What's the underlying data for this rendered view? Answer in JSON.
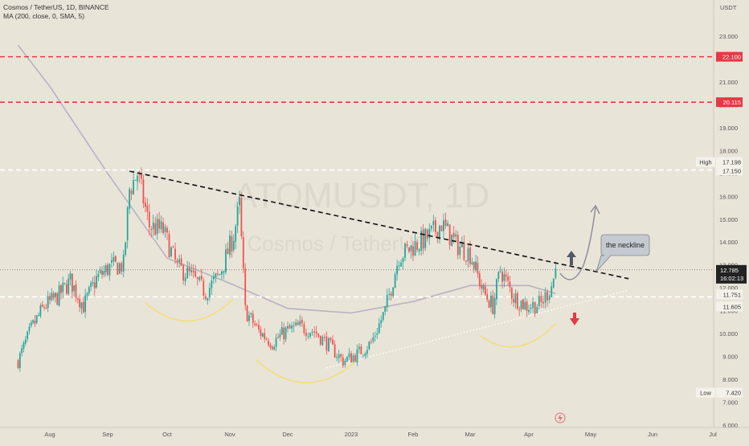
{
  "header": {
    "symbol_line": "Cosmos / TetherUS, 1D, BINANCE",
    "indicator_line": "MA (200, close, 0, SMA, 5)"
  },
  "watermark": {
    "ticker": "ATOMUSDT, 1D",
    "name": "Cosmos / TetherUS"
  },
  "price_axis": {
    "currency": "USDT",
    "ticks": [
      "6.000",
      "7.000",
      "8.000",
      "9.000",
      "10.000",
      "11.000",
      "12.000",
      "13.000",
      "14.000",
      "15.000",
      "16.000",
      "17.000",
      "18.000",
      "19.000",
      "20.000",
      "21.000",
      "22.000",
      "23.000"
    ]
  },
  "price_labels": {
    "resistance_1": "22.100",
    "resistance_2": "20.115",
    "high_tag": "High",
    "high_value": "17.198",
    "level_17150": "17.150",
    "current_price": "12.785",
    "countdown": "16:02:13",
    "level_11751": "11.751",
    "level_11605": "11.605",
    "low_tag": "Low",
    "low_value": "7.420"
  },
  "annotation": {
    "neckline_text": "the neckline"
  },
  "time_axis": {
    "labels": [
      "Aug",
      "Sep",
      "Oct",
      "Nov",
      "Dec",
      "2023",
      "Feb",
      "Mar",
      "Apr",
      "May",
      "Jun",
      "Jul"
    ]
  },
  "colors": {
    "background": "#e9e4d8",
    "up_candle": "#26a69a",
    "down_candle": "#ef5350",
    "resistance": "#e53945",
    "ma_line": "#b8b2c2",
    "neckline": "#111111",
    "cup_arcs": "#f2df7a",
    "current_price_bg": "#222222"
  },
  "chart_data": {
    "type": "candlestick",
    "title": "Cosmos / TetherUS, 1D, BINANCE",
    "ylim": [
      6.0,
      24.5
    ],
    "y_unit": "USDT",
    "x_axis": [
      "Aug",
      "Sep",
      "Oct",
      "Nov",
      "Dec",
      "2023",
      "Feb",
      "Mar",
      "Apr",
      "May",
      "Jun",
      "Jul"
    ],
    "close_path": [
      [
        "2022-07-15",
        8.8
      ],
      [
        "2022-07-22",
        10.2
      ],
      [
        "2022-07-29",
        11.2
      ],
      [
        "2022-08-05",
        11.6
      ],
      [
        "2022-08-12",
        12.3
      ],
      [
        "2022-08-19",
        11.2
      ],
      [
        "2022-08-26",
        12.4
      ],
      [
        "2022-09-02",
        12.9
      ],
      [
        "2022-09-09",
        13.0
      ],
      [
        "2022-09-12",
        16.3
      ],
      [
        "2022-09-16",
        17.0
      ],
      [
        "2022-09-22",
        14.7
      ],
      [
        "2022-09-29",
        14.5
      ],
      [
        "2022-10-06",
        12.9
      ],
      [
        "2022-10-13",
        12.5
      ],
      [
        "2022-10-20",
        11.8
      ],
      [
        "2022-10-27",
        12.6
      ],
      [
        "2022-11-03",
        14.3
      ],
      [
        "2022-11-06",
        15.6
      ],
      [
        "2022-11-09",
        11.0
      ],
      [
        "2022-11-16",
        10.1
      ],
      [
        "2022-11-23",
        9.6
      ],
      [
        "2022-11-30",
        10.1
      ],
      [
        "2022-12-07",
        10.3
      ],
      [
        "2022-12-14",
        10.1
      ],
      [
        "2022-12-21",
        9.5
      ],
      [
        "2022-12-28",
        8.8
      ],
      [
        "2023-01-04",
        9.1
      ],
      [
        "2023-01-11",
        9.6
      ],
      [
        "2023-01-18",
        11.0
      ],
      [
        "2023-01-25",
        13.4
      ],
      [
        "2023-02-01",
        13.8
      ],
      [
        "2023-02-08",
        14.2
      ],
      [
        "2023-02-15",
        14.8
      ],
      [
        "2023-02-22",
        13.9
      ],
      [
        "2023-03-01",
        13.5
      ],
      [
        "2023-03-08",
        11.8
      ],
      [
        "2023-03-13",
        11.2
      ],
      [
        "2023-03-17",
        12.8
      ],
      [
        "2023-03-24",
        11.6
      ],
      [
        "2023-03-31",
        11.2
      ],
      [
        "2023-04-07",
        11.3
      ],
      [
        "2023-04-12",
        12.1
      ],
      [
        "2023-04-14",
        12.785
      ]
    ],
    "ma_200": [
      [
        "2022-07-15",
        22.6
      ],
      [
        "2022-08-01",
        20.8
      ],
      [
        "2022-09-01",
        17.0
      ],
      [
        "2022-10-01",
        13.3
      ],
      [
        "2022-11-01",
        12.2
      ],
      [
        "2022-12-01",
        11.1
      ],
      [
        "2023-01-01",
        10.9
      ],
      [
        "2023-02-01",
        11.4
      ],
      [
        "2023-03-01",
        12.1
      ],
      [
        "2023-04-01",
        12.1
      ],
      [
        "2023-04-14",
        11.75
      ]
    ],
    "horizontal_levels": [
      22.1,
      20.115,
      17.15,
      11.605,
      12.785
    ],
    "neckline": {
      "from": [
        "2022-09-12",
        17.1
      ],
      "to": [
        "2023-05-20",
        12.4
      ]
    },
    "rising_support": {
      "from": [
        "2022-12-20",
        8.5
      ],
      "to": [
        "2023-05-20",
        11.9
      ]
    },
    "projection_target": [
      "2023-05-01",
      15.5
    ],
    "high": 17.198,
    "low": 7.42,
    "last": 12.785
  }
}
